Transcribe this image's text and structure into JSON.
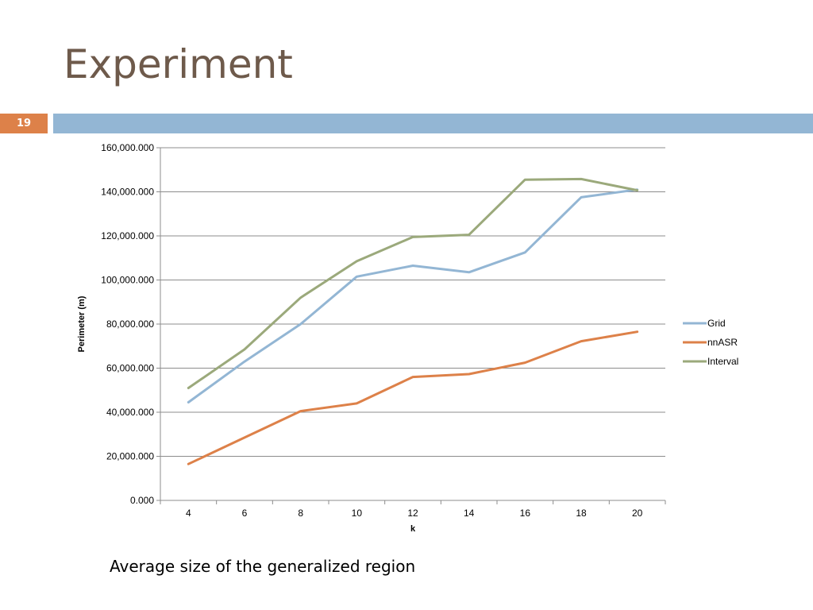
{
  "slide": {
    "title": "Experiment",
    "number": "19",
    "caption": "Average size of the generalized region"
  },
  "colors": {
    "title": "#6e5a4b",
    "accent_orange": "#dd8149",
    "accent_blue": "#93b6d4"
  },
  "chart_data": {
    "type": "line",
    "title": "",
    "xlabel": "k",
    "ylabel": "Perimeter (m)",
    "categories": [
      "4",
      "6",
      "8",
      "10",
      "12",
      "14",
      "16",
      "18",
      "20"
    ],
    "ylim": [
      0,
      160000
    ],
    "yticks": [
      0,
      20000,
      40000,
      60000,
      80000,
      100000,
      120000,
      140000,
      160000
    ],
    "ytick_labels": [
      "0.000",
      "20,000.000",
      "40,000.000",
      "60,000.000",
      "80,000.000",
      "100,000.000",
      "120,000.000",
      "140,000.000",
      "160,000.000"
    ],
    "grid": true,
    "legend_position": "right",
    "series": [
      {
        "name": "Grid",
        "color": "#93b6d4",
        "values": [
          44500,
          63000,
          80000,
          101500,
          106500,
          103500,
          112500,
          137500,
          141000
        ]
      },
      {
        "name": "nnASR",
        "color": "#dd8149",
        "values": [
          16500,
          28500,
          40500,
          44000,
          56000,
          57300,
          62500,
          72200,
          76500
        ]
      },
      {
        "name": "Interval",
        "color": "#9ba97b",
        "values": [
          51000,
          68500,
          92000,
          108500,
          119500,
          120500,
          145500,
          145800,
          140700
        ]
      }
    ]
  }
}
